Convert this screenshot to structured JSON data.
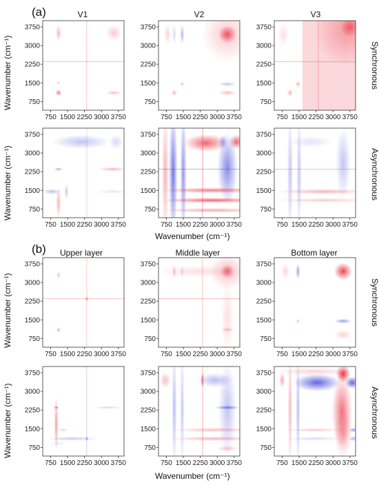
{
  "section_a": {
    "letter": "(a)",
    "columns": [
      "V1",
      "V2",
      "V3"
    ],
    "rows": [
      "Synchronous",
      "Asynchronous"
    ],
    "xlabel": "Wavenumber (cm⁻¹)",
    "ylabel": "Wavenumber (cm⁻¹)"
  },
  "section_b": {
    "letter": "(b)",
    "columns": [
      "Upper layer",
      "Middle layer",
      "Bottom layer"
    ],
    "rows": [
      "Synchronous",
      "Asynchronous"
    ],
    "xlabel": "Wavenumber (cm⁻¹)",
    "ylabel": "Wavenumber (cm⁻¹)"
  },
  "colors": {
    "positive": "#e8283a",
    "negative": "#3a3fd8",
    "axis": "#333333"
  },
  "chart_data": {
    "type": "heatmap",
    "xlim": [
      400,
      4000
    ],
    "ylim": [
      400,
      4000
    ],
    "x_ticks": [
      750,
      1500,
      2250,
      3000,
      3750
    ],
    "y_ticks": [
      750,
      1500,
      2250,
      3000,
      3750
    ],
    "panels": [
      {
        "id": "a-sync-V1",
        "features": [
          {
            "type": "blob",
            "x": 1100,
            "y": 3500,
            "sx": 80,
            "sy": 200,
            "s": 0.35
          },
          {
            "type": "blob",
            "x": 3550,
            "y": 3500,
            "sx": 220,
            "sy": 200,
            "s": 0.25
          },
          {
            "type": "blob",
            "x": 1100,
            "y": 1100,
            "sx": 90,
            "sy": 80,
            "s": 0.6
          },
          {
            "type": "blob",
            "x": 3550,
            "y": 1100,
            "sx": 220,
            "sy": 60,
            "s": 0.3
          },
          {
            "type": "blob",
            "x": 1100,
            "y": 1500,
            "sx": 60,
            "sy": 50,
            "s": 0.25
          },
          {
            "type": "hline",
            "y": 2350,
            "w": 25,
            "s": 0.35
          },
          {
            "type": "vline",
            "x": 2350,
            "w": 25,
            "s": 0.35
          }
        ]
      },
      {
        "id": "a-sync-V2",
        "features": [
          {
            "type": "blob",
            "x": 3450,
            "y": 3450,
            "sx": 700,
            "sy": 700,
            "s": 0.25
          },
          {
            "type": "blob",
            "x": 3450,
            "y": 3450,
            "sx": 250,
            "sy": 220,
            "s": 0.75
          },
          {
            "type": "blob",
            "x": 800,
            "y": 3450,
            "sx": 100,
            "sy": 250,
            "s": 0.2
          },
          {
            "type": "blob",
            "x": 1450,
            "y": 3450,
            "sx": 60,
            "sy": 250,
            "s": -0.4
          },
          {
            "type": "blob",
            "x": 1100,
            "y": 3450,
            "sx": 60,
            "sy": 250,
            "s": -0.2
          },
          {
            "type": "blob",
            "x": 3450,
            "y": 1450,
            "sx": 250,
            "sy": 60,
            "s": -0.3
          },
          {
            "type": "blob",
            "x": 3450,
            "y": 1100,
            "sx": 250,
            "sy": 70,
            "s": 0.3
          },
          {
            "type": "blob",
            "x": 1100,
            "y": 1100,
            "sx": 80,
            "sy": 80,
            "s": 0.35
          },
          {
            "type": "blob",
            "x": 1450,
            "y": 1450,
            "sx": 60,
            "sy": 60,
            "s": 0.3
          }
        ]
      },
      {
        "id": "a-sync-V3",
        "features": [
          {
            "type": "rect",
            "x0": 1650,
            "x1": 4000,
            "y0": 400,
            "y1": 4000,
            "s": 0.18
          },
          {
            "type": "blob",
            "x": 3600,
            "y": 3600,
            "sx": 900,
            "sy": 900,
            "s": 0.35
          },
          {
            "type": "blob",
            "x": 3750,
            "y": 3750,
            "sx": 250,
            "sy": 250,
            "s": 0.6
          },
          {
            "type": "blob",
            "x": 800,
            "y": 3450,
            "sx": 150,
            "sy": 300,
            "s": 0.15
          },
          {
            "type": "blob",
            "x": 1100,
            "y": 1100,
            "sx": 90,
            "sy": 90,
            "s": 0.35
          },
          {
            "type": "blob",
            "x": 1450,
            "y": 1450,
            "sx": 80,
            "sy": 80,
            "s": 0.35
          },
          {
            "type": "hline",
            "y": 2350,
            "w": 30,
            "s": 0.3
          },
          {
            "type": "vline",
            "x": 2350,
            "w": 30,
            "s": 0.3
          }
        ]
      },
      {
        "id": "a-async-V1",
        "features": [
          {
            "type": "blob",
            "x": 2100,
            "y": 3450,
            "sx": 800,
            "sy": 180,
            "s": -0.3
          },
          {
            "type": "blob",
            "x": 3650,
            "y": 3450,
            "sx": 200,
            "sy": 180,
            "s": -0.2
          },
          {
            "type": "blob",
            "x": 3500,
            "y": 2350,
            "sx": 400,
            "sy": 50,
            "s": 0.35
          },
          {
            "type": "blob",
            "x": 1100,
            "y": 2350,
            "sx": 120,
            "sy": 40,
            "s": 0.5
          },
          {
            "type": "blob",
            "x": 800,
            "y": 1450,
            "sx": 250,
            "sy": 70,
            "s": -0.35
          },
          {
            "type": "blob",
            "x": 1100,
            "y": 1000,
            "sx": 70,
            "sy": 400,
            "s": 0.35
          },
          {
            "type": "blob",
            "x": 1450,
            "y": 1450,
            "sx": 60,
            "sy": 200,
            "s": -0.3
          },
          {
            "type": "blob",
            "x": 3500,
            "y": 1450,
            "sx": 400,
            "sy": 50,
            "s": -0.15
          },
          {
            "type": "vline",
            "x": 2350,
            "w": 25,
            "s": -0.25
          }
        ]
      },
      {
        "id": "a-async-V2",
        "features": [
          {
            "type": "blob",
            "x": 1050,
            "y": 2200,
            "sx": 120,
            "sy": 1600,
            "s": -0.7
          },
          {
            "type": "blob",
            "x": 1500,
            "y": 2200,
            "sx": 90,
            "sy": 1600,
            "s": -0.55
          },
          {
            "type": "blob",
            "x": 700,
            "y": 2200,
            "sx": 100,
            "sy": 1600,
            "s": 0.35
          },
          {
            "type": "blob",
            "x": 2500,
            "y": 3400,
            "sx": 600,
            "sy": 220,
            "s": 0.7
          },
          {
            "type": "blob",
            "x": 3450,
            "y": 2400,
            "sx": 280,
            "sy": 900,
            "s": -0.6
          },
          {
            "type": "blob",
            "x": 3850,
            "y": 3450,
            "sx": 200,
            "sy": 180,
            "s": 0.7
          },
          {
            "type": "blob",
            "x": 3250,
            "y": 3450,
            "sx": 120,
            "sy": 180,
            "s": -0.4
          },
          {
            "type": "blob",
            "x": 2800,
            "y": 1100,
            "sx": 1400,
            "sy": 70,
            "s": 0.7
          },
          {
            "type": "blob",
            "x": 2800,
            "y": 1500,
            "sx": 1400,
            "sy": 70,
            "s": 0.6
          },
          {
            "type": "blob",
            "x": 2800,
            "y": 700,
            "sx": 1400,
            "sy": 60,
            "s": 0.4
          },
          {
            "type": "hline",
            "y": 2350,
            "w": 30,
            "s": -0.35
          },
          {
            "type": "vline",
            "x": 2350,
            "w": 30,
            "s": 0.45
          }
        ]
      },
      {
        "id": "a-async-V3",
        "features": [
          {
            "type": "blob",
            "x": 1100,
            "y": 2200,
            "sx": 80,
            "sy": 1500,
            "s": -0.3
          },
          {
            "type": "blob",
            "x": 1500,
            "y": 2200,
            "sx": 70,
            "sy": 1500,
            "s": -0.3
          },
          {
            "type": "blob",
            "x": 3450,
            "y": 2600,
            "sx": 200,
            "sy": 900,
            "s": -0.3
          },
          {
            "type": "blob",
            "x": 2600,
            "y": 1450,
            "sx": 1300,
            "sy": 70,
            "s": 0.35
          },
          {
            "type": "blob",
            "x": 2600,
            "y": 1100,
            "sx": 1300,
            "sy": 60,
            "s": 0.25
          },
          {
            "type": "blob",
            "x": 2000,
            "y": 3450,
            "sx": 600,
            "sy": 150,
            "s": -0.15
          },
          {
            "type": "hline",
            "y": 2350,
            "w": 30,
            "s": 0.3
          }
        ]
      },
      {
        "id": "b-sync-upper",
        "features": [
          {
            "type": "blob",
            "x": 1100,
            "y": 3300,
            "sx": 40,
            "sy": 90,
            "s": 0.4
          },
          {
            "type": "blob",
            "x": 1100,
            "y": 1100,
            "sx": 60,
            "sy": 60,
            "s": 0.45
          },
          {
            "type": "hline",
            "y": 2350,
            "w": 25,
            "s": 0.3
          },
          {
            "type": "vline",
            "x": 2350,
            "w": 25,
            "s": 0.3
          },
          {
            "type": "blob",
            "x": 2350,
            "y": 2350,
            "sx": 60,
            "sy": 60,
            "s": 0.4
          }
        ]
      },
      {
        "id": "b-sync-middle",
        "features": [
          {
            "type": "blob",
            "x": 3450,
            "y": 3450,
            "sx": 500,
            "sy": 450,
            "s": 0.3
          },
          {
            "type": "blob",
            "x": 3450,
            "y": 3450,
            "sx": 180,
            "sy": 170,
            "s": 0.6
          },
          {
            "type": "blob",
            "x": 2200,
            "y": 3450,
            "sx": 1200,
            "sy": 150,
            "s": 0.15
          },
          {
            "type": "blob",
            "x": 3450,
            "y": 1600,
            "sx": 180,
            "sy": 900,
            "s": 0.15
          },
          {
            "type": "blob",
            "x": 1100,
            "y": 3450,
            "sx": 60,
            "sy": 170,
            "s": 0.3
          },
          {
            "type": "blob",
            "x": 3450,
            "y": 1100,
            "sx": 180,
            "sy": 60,
            "s": 0.3
          },
          {
            "type": "blob",
            "x": 1450,
            "y": 3450,
            "sx": 50,
            "sy": 170,
            "s": -0.2
          },
          {
            "type": "hline",
            "y": 2350,
            "w": 25,
            "s": 0.35
          },
          {
            "type": "vline",
            "x": 2350,
            "w": 25,
            "s": 0.35
          }
        ]
      },
      {
        "id": "b-sync-bottom",
        "features": [
          {
            "type": "blob",
            "x": 3450,
            "y": 3450,
            "sx": 250,
            "sy": 220,
            "s": 0.85
          },
          {
            "type": "blob",
            "x": 1450,
            "y": 3450,
            "sx": 60,
            "sy": 200,
            "s": -0.5
          },
          {
            "type": "blob",
            "x": 900,
            "y": 3450,
            "sx": 120,
            "sy": 200,
            "s": 0.2
          },
          {
            "type": "blob",
            "x": 3450,
            "y": 1450,
            "sx": 250,
            "sy": 60,
            "s": -0.5
          },
          {
            "type": "blob",
            "x": 3450,
            "y": 900,
            "sx": 250,
            "sy": 120,
            "s": 0.2
          },
          {
            "type": "blob",
            "x": 1450,
            "y": 1450,
            "sx": 60,
            "sy": 60,
            "s": 0.3
          }
        ]
      },
      {
        "id": "b-async-upper",
        "features": [
          {
            "type": "blob",
            "x": 1000,
            "y": 1700,
            "sx": 60,
            "sy": 700,
            "s": 0.45
          },
          {
            "type": "blob",
            "x": 1000,
            "y": 2350,
            "sx": 80,
            "sy": 40,
            "s": 0.6
          },
          {
            "type": "blob",
            "x": 1700,
            "y": 1100,
            "sx": 700,
            "sy": 50,
            "s": -0.3
          },
          {
            "type": "blob",
            "x": 1300,
            "y": 1450,
            "sx": 150,
            "sy": 50,
            "s": 0.2
          },
          {
            "type": "blob",
            "x": 3300,
            "y": 2350,
            "sx": 400,
            "sy": 30,
            "s": 0.25
          },
          {
            "type": "vline",
            "x": 2350,
            "w": 25,
            "s": -0.3
          },
          {
            "type": "blob",
            "x": 2350,
            "y": 1100,
            "sx": 40,
            "sy": 60,
            "s": -0.5
          },
          {
            "type": "blob",
            "x": 1100,
            "y": 900,
            "sx": 200,
            "sy": 40,
            "s": -0.15
          }
        ]
      },
      {
        "id": "b-async-middle",
        "features": [
          {
            "type": "blob",
            "x": 700,
            "y": 3450,
            "sx": 150,
            "sy": 200,
            "s": 0.3
          },
          {
            "type": "blob",
            "x": 1100,
            "y": 2300,
            "sx": 70,
            "sy": 1500,
            "s": -0.35
          },
          {
            "type": "blob",
            "x": 1450,
            "y": 2300,
            "sx": 60,
            "sy": 1500,
            "s": -0.3
          },
          {
            "type": "blob",
            "x": 3450,
            "y": 2300,
            "sx": 250,
            "sy": 1200,
            "s": -0.3
          },
          {
            "type": "blob",
            "x": 2900,
            "y": 3450,
            "sx": 500,
            "sy": 180,
            "s": -0.35
          },
          {
            "type": "blob",
            "x": 3450,
            "y": 2350,
            "sx": 350,
            "sy": 50,
            "s": -0.6
          },
          {
            "type": "blob",
            "x": 2350,
            "y": 3450,
            "sx": 50,
            "sy": 200,
            "s": 0.6
          },
          {
            "type": "blob",
            "x": 2900,
            "y": 1100,
            "sx": 1200,
            "sy": 60,
            "s": 0.35
          },
          {
            "type": "blob",
            "x": 2900,
            "y": 1450,
            "sx": 1200,
            "sy": 60,
            "s": 0.3
          },
          {
            "type": "blob",
            "x": 3450,
            "y": 700,
            "sx": 300,
            "sy": 80,
            "s": 0.25
          },
          {
            "type": "vline",
            "x": 2350,
            "w": 30,
            "s": 0.35
          }
        ]
      },
      {
        "id": "b-async-bottom",
        "features": [
          {
            "type": "blob",
            "x": 2300,
            "y": 3350,
            "sx": 650,
            "sy": 220,
            "s": -0.8
          },
          {
            "type": "blob",
            "x": 3450,
            "y": 3700,
            "sx": 200,
            "sy": 220,
            "s": 0.95
          },
          {
            "type": "blob",
            "x": 3850,
            "y": 3350,
            "sx": 200,
            "sy": 150,
            "s": -0.8
          },
          {
            "type": "blob",
            "x": 3400,
            "y": 2200,
            "sx": 280,
            "sy": 900,
            "s": 0.65
          },
          {
            "type": "blob",
            "x": 3450,
            "y": 1300,
            "sx": 250,
            "sy": 600,
            "s": 0.35
          },
          {
            "type": "blob",
            "x": 3900,
            "y": 1450,
            "sx": 120,
            "sy": 60,
            "s": -0.5
          },
          {
            "type": "blob",
            "x": 3900,
            "y": 1100,
            "sx": 120,
            "sy": 60,
            "s": -0.4
          },
          {
            "type": "blob",
            "x": 1100,
            "y": 2300,
            "sx": 60,
            "sy": 1500,
            "s": 0.35
          },
          {
            "type": "blob",
            "x": 1450,
            "y": 2300,
            "sx": 60,
            "sy": 1500,
            "s": -0.35
          },
          {
            "type": "blob",
            "x": 750,
            "y": 3450,
            "sx": 80,
            "sy": 200,
            "s": 0.4
          },
          {
            "type": "blob",
            "x": 2200,
            "y": 1450,
            "sx": 800,
            "sy": 50,
            "s": 0.25
          },
          {
            "type": "blob",
            "x": 2200,
            "y": 1100,
            "sx": 800,
            "sy": 50,
            "s": -0.2
          },
          {
            "type": "blob",
            "x": 2200,
            "y": 3800,
            "sx": 1100,
            "sy": 100,
            "s": 0.2
          }
        ]
      }
    ]
  }
}
